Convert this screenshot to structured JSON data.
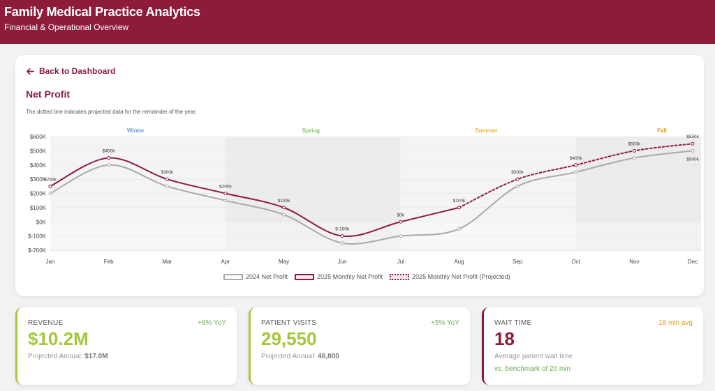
{
  "header": {
    "title": "Family Medical Practice Analytics",
    "subtitle": "Financial & Operational Overview"
  },
  "back_link": "Back to Dashboard",
  "card": {
    "title": "Net Profit",
    "note": "The dotted line indicates projected data for the remainder of the year."
  },
  "legend": {
    "s2024": "2024 Net Profit",
    "s2025": "2025 Monthly Net Profit",
    "sproj": "2025 Monthly Net Profit (Projected)"
  },
  "colors": {
    "brand": "#8c1c3a",
    "line2024": "#aaaaaa",
    "green": "#a3c83a",
    "yoy_green": "#6aaa50",
    "orange": "#e39b17"
  },
  "chart_data": {
    "type": "line",
    "categories": [
      "Jan",
      "Feb",
      "Mar",
      "Apr",
      "May",
      "Jun",
      "Jul",
      "Aug",
      "Sep",
      "Oct",
      "Nov",
      "Dec"
    ],
    "yticks": [
      "$-200K",
      "$-100K",
      "$0K",
      "$100K",
      "$200K",
      "$300K",
      "$400K",
      "$500K",
      "$600K"
    ],
    "ylim": [
      -200,
      600
    ],
    "seasons": [
      {
        "name": "Winter",
        "color": "#6b9bd8",
        "start": 0,
        "end": 3
      },
      {
        "name": "Spring",
        "color": "#82c46a",
        "start": 3,
        "end": 6
      },
      {
        "name": "Summer",
        "color": "#e5b52a",
        "start": 6,
        "end": 9
      },
      {
        "name": "Fall",
        "color": "#e39b17",
        "start": 9,
        "end": 12
      }
    ],
    "series": [
      {
        "name": "2024 Net Profit",
        "values": [
          200,
          400,
          250,
          150,
          50,
          -150,
          -100,
          -50,
          250,
          350,
          450,
          500
        ]
      },
      {
        "name": "2025 Monthly Net Profit",
        "values": [
          250,
          450,
          300,
          200,
          100,
          -100,
          0,
          100,
          null,
          null,
          null,
          null
        ]
      },
      {
        "name": "2025 Monthly Net Profit (Projected)",
        "values": [
          null,
          null,
          null,
          null,
          null,
          null,
          null,
          100,
          300,
          400,
          500,
          550
        ]
      }
    ],
    "point_labels_2025": [
      "$250k",
      "$450k",
      "$300k",
      "$200k",
      "$100k",
      "$-100k",
      "$0k",
      "$100k",
      "$300k",
      "$400k",
      "$500k",
      "$550k"
    ],
    "point_label_2024_dec": "$500k"
  },
  "kpis": [
    {
      "label": "REVENUE",
      "yoy": "+8% YoY",
      "value": "$10.2M",
      "sub_prefix": "Projected Annual:",
      "sub_value": "$17.0M"
    },
    {
      "label": "PATIENT VISITS",
      "yoy": "+5% YoY",
      "value": "29,550",
      "sub_prefix": "Projected Annual:",
      "sub_value": "46,800"
    },
    {
      "label": "WAIT TIME",
      "yoy": "18 min avg",
      "value": "18",
      "sub": "Average patient wait time",
      "sub2": "vs. benchmark of 20 min"
    }
  ]
}
